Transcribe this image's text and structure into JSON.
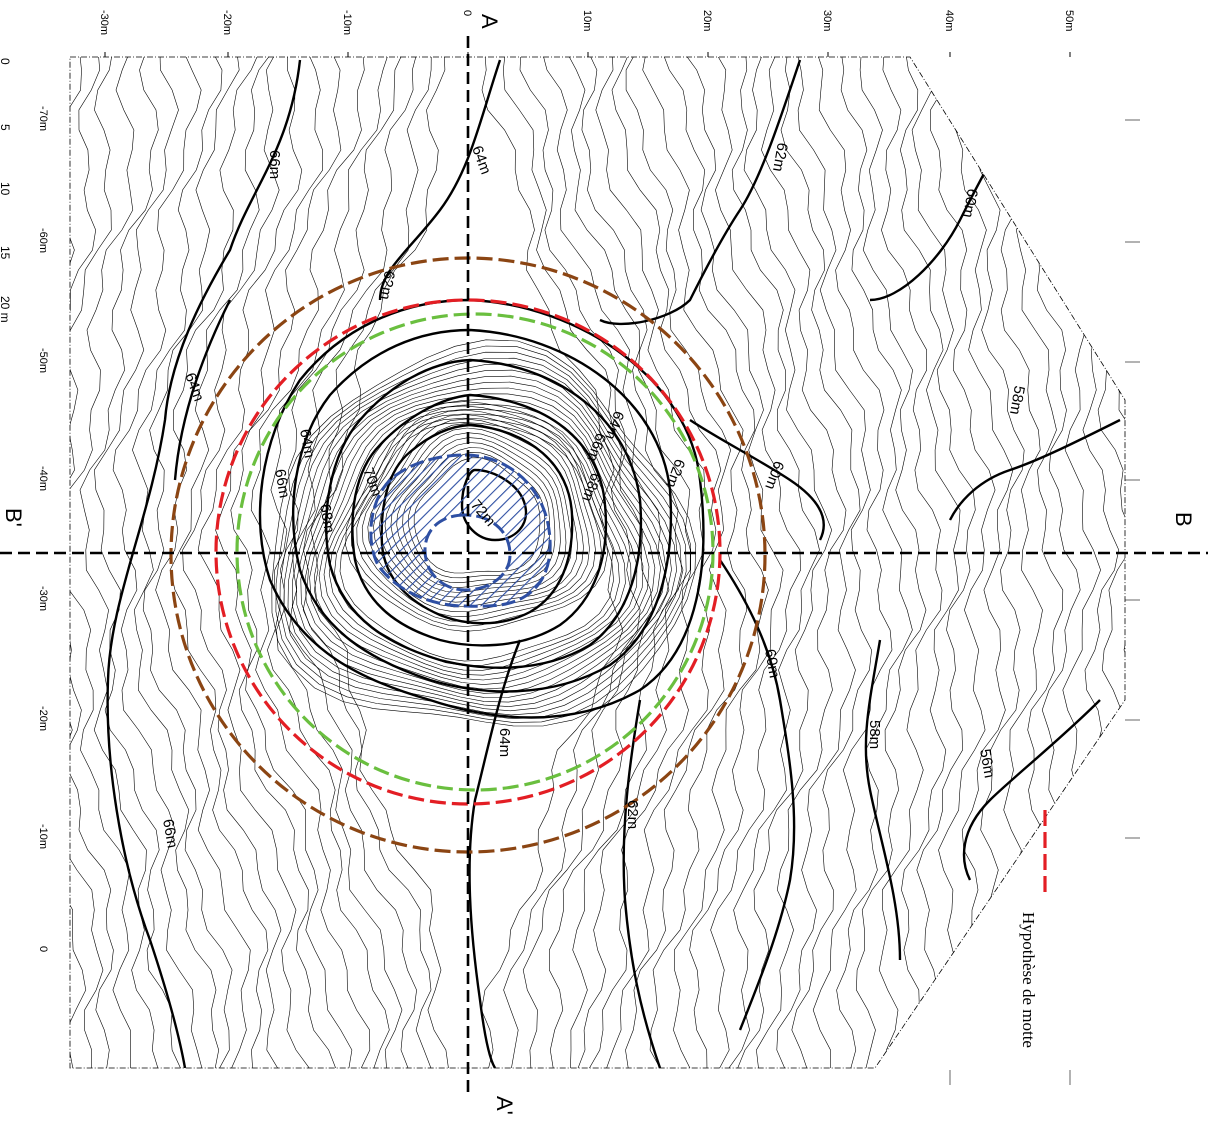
{
  "section_lines": {
    "a_start": "A",
    "a_end": "A'",
    "b_start": "B",
    "b_end": "B'"
  },
  "axis": {
    "horizontal_ticks": [
      "-30m",
      "-20m",
      "-10m",
      "0",
      "10m",
      "20m",
      "30m",
      "40m",
      "50m"
    ],
    "vertical_ticks": [
      "-70m",
      "-60m",
      "-50m",
      "-40m",
      "-30m",
      "-20m",
      "-10m",
      "0"
    ]
  },
  "contour_labels": {
    "c64_top": "64m",
    "c66_top": "66m",
    "c62_top_right": "62m",
    "c60_top_right": "60m",
    "c62_mid": "62m",
    "c64_left": "64m",
    "c58_right": "58m",
    "c64_inner": "64m",
    "c66_inner": "66m",
    "c68_inner": "68m",
    "c62_inner": "62m",
    "c60_right": "60m",
    "c64_inner_left": "64m",
    "c66_inner_left": "66m",
    "c68_inner_left": "68m",
    "c70": "70m",
    "c72": "72m",
    "c60_lower": "60m",
    "c58_lower": "58m",
    "c56": "56m",
    "c64_lower": "64m",
    "c62_lower": "62m",
    "c66_lower": "66m"
  },
  "scale_bar": {
    "ticks": [
      "0",
      "5",
      "10",
      "15",
      "20 m"
    ]
  },
  "legend": {
    "red_dashed_label": "Hypothèse de motte"
  },
  "colors": {
    "outer_circle": "#8b4513",
    "red_circle": "#e31e24",
    "green_circle": "#6abf3f",
    "summit_hatch": "#2e4fa3",
    "contour": "#000000",
    "section_line": "#000000"
  },
  "icons": {
    "outer_circle": "brown-dashed-circle",
    "red_circle": "red-dashed-circle",
    "green_circle": "green-dashed-circle",
    "summit": "blue-hatched-ring"
  }
}
